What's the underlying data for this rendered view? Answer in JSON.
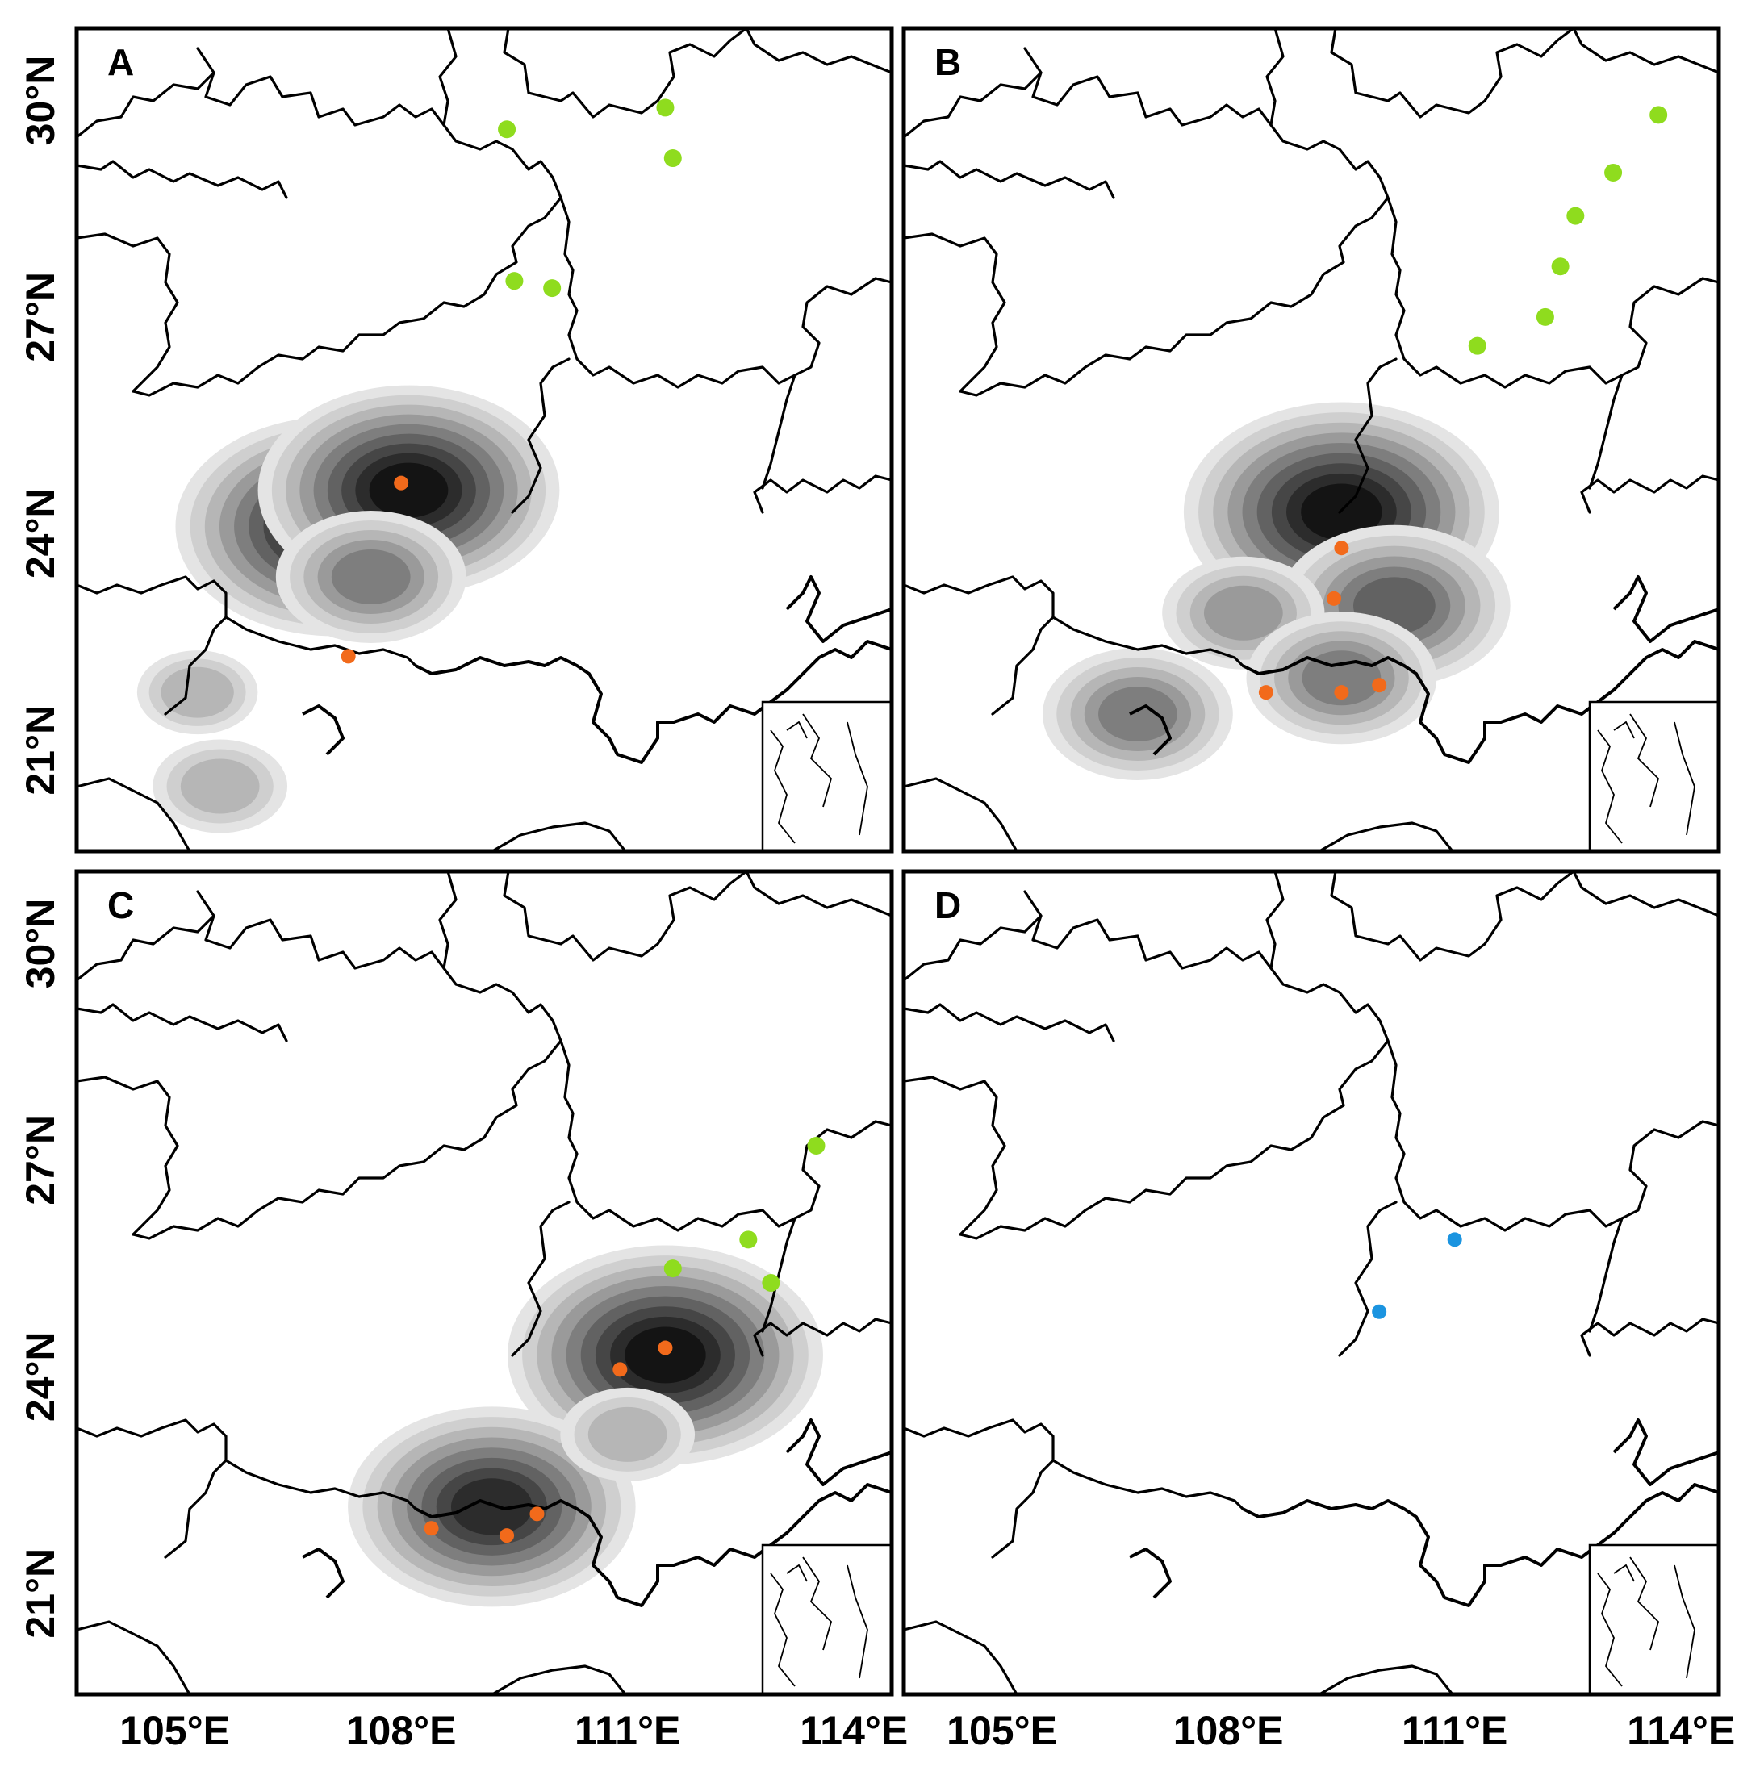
{
  "panels": [
    {
      "id": "A",
      "label": "A",
      "density": [
        {
          "lon": 107.1,
          "lat": 24.1,
          "peak": 1.0
        },
        {
          "lon": 108.1,
          "lat": 24.6,
          "peak": 0.95
        },
        {
          "lon": 107.6,
          "lat": 23.4,
          "peak": 0.55
        },
        {
          "lon": 105.3,
          "lat": 21.8,
          "peak": 0.3
        },
        {
          "lon": 105.6,
          "lat": 20.5,
          "peak": 0.35
        }
      ],
      "points": [
        {
          "lon": 109.4,
          "lat": 29.6,
          "type": "green"
        },
        {
          "lon": 111.5,
          "lat": 29.9,
          "type": "green"
        },
        {
          "lon": 111.6,
          "lat": 29.2,
          "type": "green"
        },
        {
          "lon": 109.5,
          "lat": 27.5,
          "type": "green"
        },
        {
          "lon": 110.0,
          "lat": 27.4,
          "type": "green"
        },
        {
          "lon": 108.0,
          "lat": 24.7,
          "type": "orange"
        },
        {
          "lon": 107.3,
          "lat": 22.3,
          "type": "orange"
        }
      ]
    },
    {
      "id": "B",
      "label": "B",
      "density": [
        {
          "lon": 109.5,
          "lat": 24.3,
          "peak": 1.0
        },
        {
          "lon": 110.2,
          "lat": 23.0,
          "peak": 0.7
        },
        {
          "lon": 108.2,
          "lat": 22.9,
          "peak": 0.45
        },
        {
          "lon": 109.5,
          "lat": 22.0,
          "peak": 0.55
        },
        {
          "lon": 106.8,
          "lat": 21.5,
          "peak": 0.55
        }
      ],
      "points": [
        {
          "lon": 113.7,
          "lat": 29.8,
          "type": "green"
        },
        {
          "lon": 113.1,
          "lat": 29.0,
          "type": "green"
        },
        {
          "lon": 112.6,
          "lat": 28.4,
          "type": "green"
        },
        {
          "lon": 112.4,
          "lat": 27.7,
          "type": "green"
        },
        {
          "lon": 112.2,
          "lat": 27.0,
          "type": "green"
        },
        {
          "lon": 111.3,
          "lat": 26.6,
          "type": "green"
        },
        {
          "lon": 109.5,
          "lat": 23.8,
          "type": "orange"
        },
        {
          "lon": 109.4,
          "lat": 23.1,
          "type": "orange"
        },
        {
          "lon": 110.0,
          "lat": 21.9,
          "type": "orange"
        },
        {
          "lon": 109.5,
          "lat": 21.8,
          "type": "orange"
        },
        {
          "lon": 108.5,
          "lat": 21.8,
          "type": "orange"
        }
      ]
    },
    {
      "id": "C",
      "label": "C",
      "density": [
        {
          "lon": 111.5,
          "lat": 24.3,
          "peak": 1.0
        },
        {
          "lon": 109.2,
          "lat": 22.2,
          "peak": 0.9
        },
        {
          "lon": 111.0,
          "lat": 23.2,
          "peak": 0.35
        }
      ],
      "points": [
        {
          "lon": 113.5,
          "lat": 27.2,
          "type": "green"
        },
        {
          "lon": 112.6,
          "lat": 25.9,
          "type": "green"
        },
        {
          "lon": 111.6,
          "lat": 25.5,
          "type": "green"
        },
        {
          "lon": 112.9,
          "lat": 25.3,
          "type": "green"
        },
        {
          "lon": 111.5,
          "lat": 24.4,
          "type": "orange"
        },
        {
          "lon": 110.9,
          "lat": 24.1,
          "type": "orange"
        },
        {
          "lon": 109.8,
          "lat": 22.1,
          "type": "orange"
        },
        {
          "lon": 108.4,
          "lat": 21.9,
          "type": "orange"
        },
        {
          "lon": 109.4,
          "lat": 21.8,
          "type": "orange"
        }
      ]
    },
    {
      "id": "D",
      "label": "D",
      "density": [],
      "points": [
        {
          "lon": 111.0,
          "lat": 25.9,
          "type": "blue"
        },
        {
          "lon": 110.0,
          "lat": 24.9,
          "type": "blue"
        }
      ]
    }
  ],
  "axes": {
    "lon_ticks": [
      "105°E",
      "108°E",
      "111°E",
      "114°E"
    ],
    "lat_ticks": [
      "30°N",
      "27°N",
      "24°N",
      "21°N"
    ],
    "lon_range": [
      103.7,
      114.5
    ],
    "lat_range": [
      19.6,
      31.0
    ]
  },
  "colors": {
    "green": "#8fdc1e",
    "orange": "#f26a1b",
    "blue": "#1b94e0",
    "density_levels": [
      "#e4e4e4",
      "#cfcfcf",
      "#b6b6b6",
      "#9a9a9a",
      "#7e7e7e",
      "#626262",
      "#464646",
      "#2c2c2c",
      "#141414"
    ]
  }
}
